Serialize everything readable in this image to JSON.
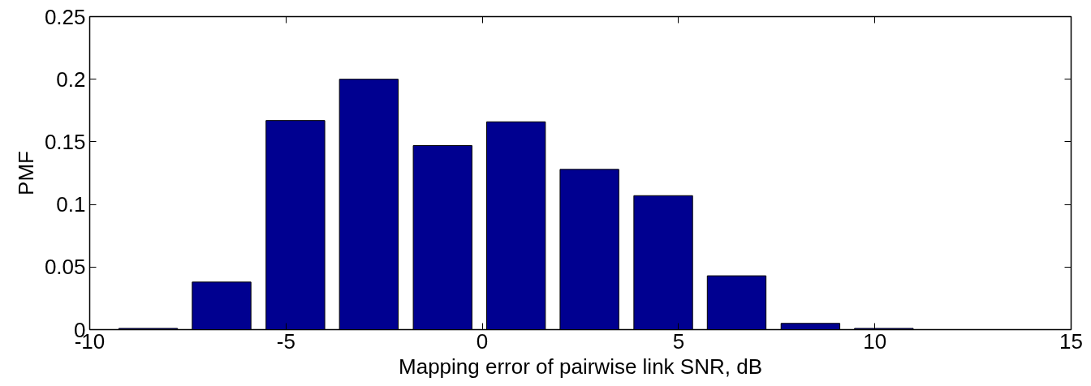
{
  "chart_data": {
    "type": "bar",
    "xlabel": "Mapping error of pairwise link SNR, dB",
    "ylabel": "PMF",
    "x": [
      -8.51,
      -6.64,
      -4.76,
      -2.89,
      -1.01,
      0.86,
      2.73,
      4.61,
      6.48,
      8.36,
      10.23
    ],
    "values": [
      0.001,
      0.038,
      0.167,
      0.2,
      0.147,
      0.166,
      0.128,
      0.107,
      0.043,
      0.005,
      0.001
    ],
    "color": "#000090",
    "xlim": [
      -10,
      15
    ],
    "xticks": [
      -10,
      -5,
      0,
      5,
      10,
      15
    ],
    "ylim": [
      0,
      0.25
    ],
    "yticks": [
      0,
      0.05,
      0.1,
      0.15,
      0.2,
      0.25
    ],
    "grid": false
  }
}
